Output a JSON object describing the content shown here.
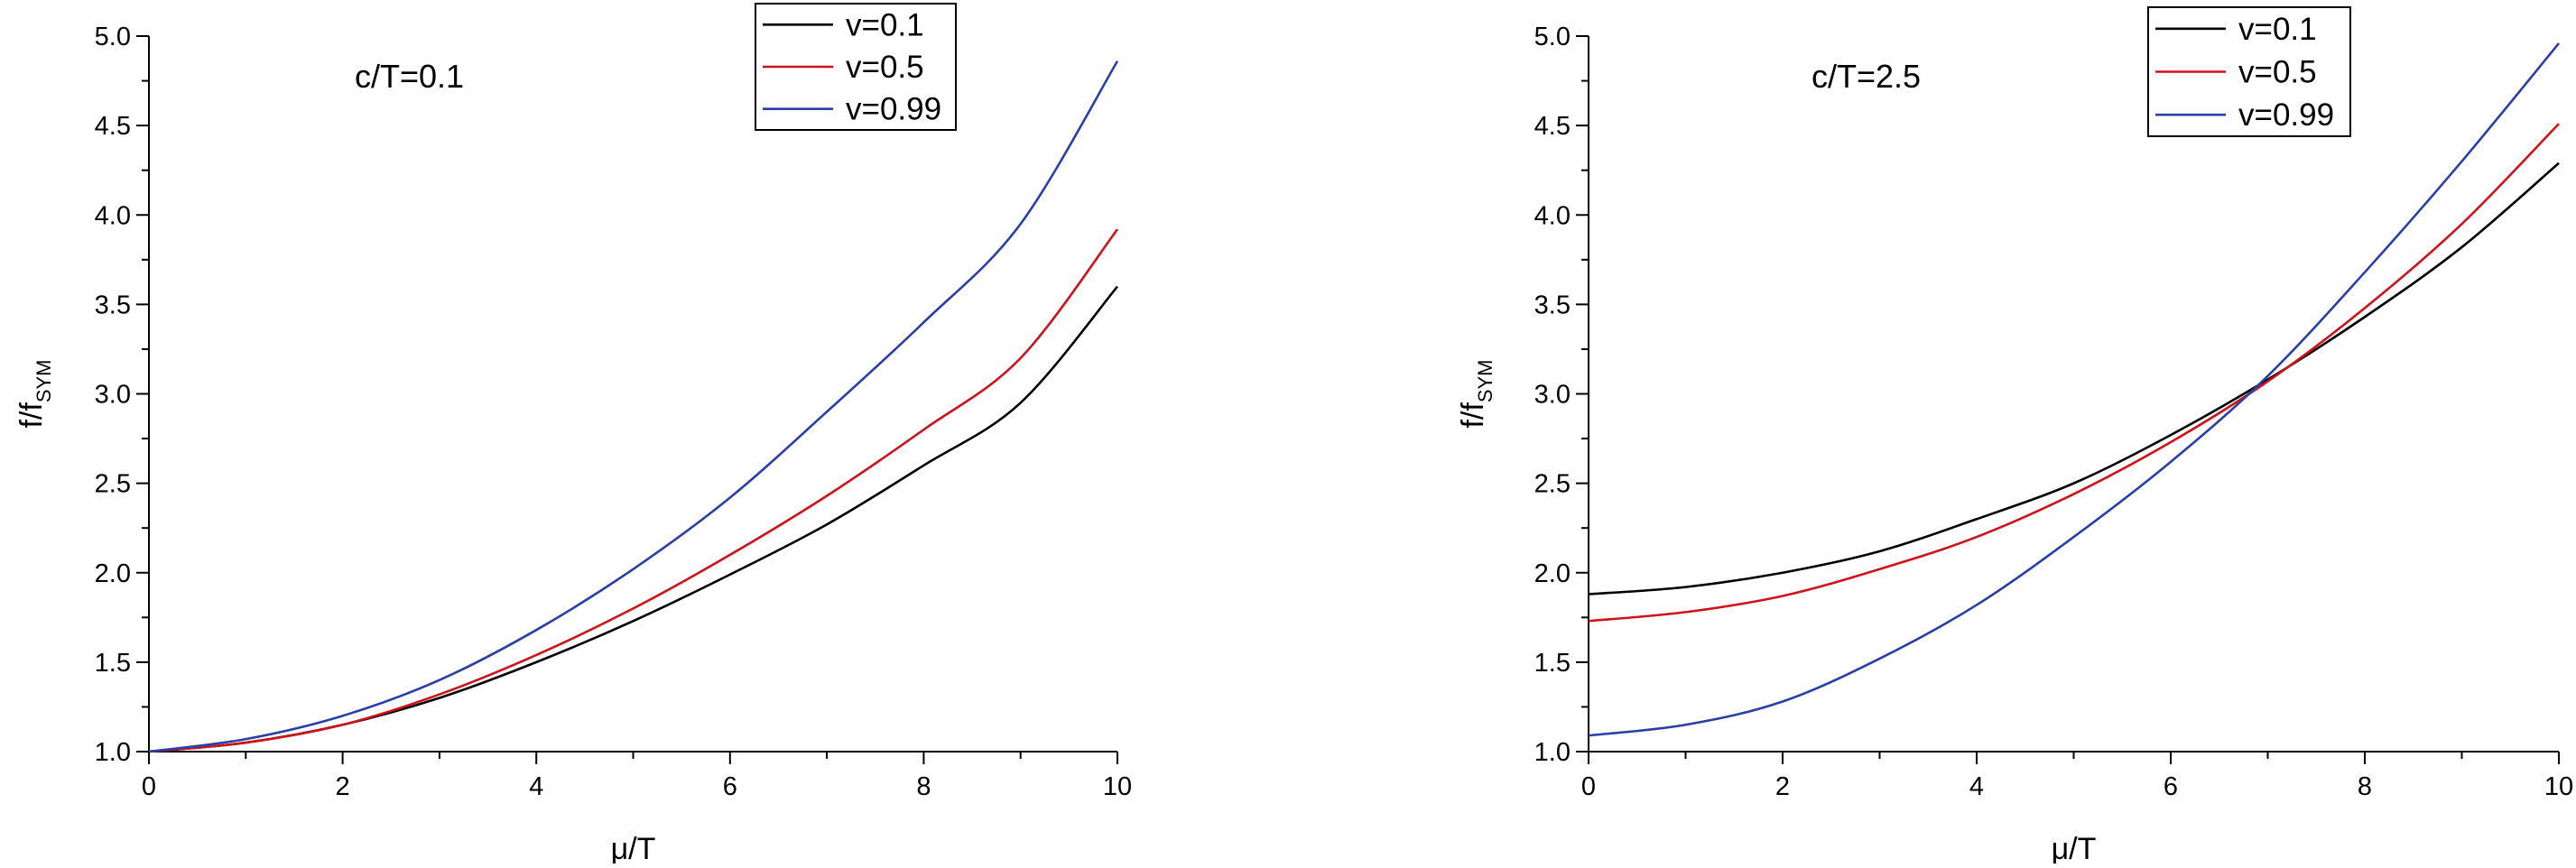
{
  "chart_data": [
    {
      "type": "line",
      "annotation": "c/T=0.1",
      "xlabel": "μ/T",
      "ylabel_main": "f/f",
      "ylabel_sub": "SYM",
      "xlim": [
        0,
        10
      ],
      "ylim": [
        1.0,
        5.0
      ],
      "xticks": [
        "0",
        "2",
        "4",
        "6",
        "8",
        "10"
      ],
      "yticks": [
        "1.0",
        "1.5",
        "2.0",
        "2.5",
        "3.0",
        "3.5",
        "4.0",
        "4.5",
        "5.0"
      ],
      "legend_position": "top-right",
      "series": [
        {
          "name": "v=0.1",
          "color": "#000000",
          "x": [
            0,
            1,
            2,
            3,
            4,
            5,
            6,
            7,
            8,
            9,
            10
          ],
          "y": [
            1.0,
            1.05,
            1.15,
            1.3,
            1.5,
            1.73,
            1.99,
            2.27,
            2.6,
            2.95,
            3.6
          ]
        },
        {
          "name": "v=0.5",
          "color": "#d0121b",
          "x": [
            0,
            1,
            2,
            3,
            4,
            5,
            6,
            7,
            8,
            9,
            10
          ],
          "y": [
            1.0,
            1.05,
            1.15,
            1.32,
            1.54,
            1.8,
            2.1,
            2.43,
            2.8,
            3.2,
            3.92
          ]
        },
        {
          "name": "v=0.99",
          "color": "#2a3ea8",
          "x": [
            0,
            1,
            2,
            3,
            4,
            5,
            6,
            7,
            8,
            9,
            10
          ],
          "y": [
            1.0,
            1.07,
            1.2,
            1.4,
            1.68,
            2.02,
            2.42,
            2.9,
            3.4,
            3.95,
            4.86
          ]
        }
      ]
    },
    {
      "type": "line",
      "annotation": "c/T=2.5",
      "xlabel": "μ/T",
      "ylabel_main": "f/f",
      "ylabel_sub": "SYM",
      "xlim": [
        0,
        10
      ],
      "ylim": [
        1.0,
        5.0
      ],
      "xticks": [
        "0",
        "2",
        "4",
        "6",
        "8",
        "10"
      ],
      "yticks": [
        "1.0",
        "1.5",
        "2.0",
        "2.5",
        "3.0",
        "3.5",
        "4.0",
        "4.5",
        "5.0"
      ],
      "legend_position": "top-right",
      "series": [
        {
          "name": "v=0.1",
          "color": "#000000",
          "x": [
            0,
            1,
            2,
            3,
            4,
            5,
            6,
            7,
            8,
            9,
            10
          ],
          "y": [
            1.88,
            1.92,
            2.0,
            2.12,
            2.3,
            2.5,
            2.77,
            3.08,
            3.43,
            3.82,
            4.29
          ]
        },
        {
          "name": "v=0.5",
          "color": "#d0121b",
          "x": [
            0,
            1,
            2,
            3,
            4,
            5,
            6,
            7,
            8,
            9,
            10
          ],
          "y": [
            1.73,
            1.78,
            1.87,
            2.02,
            2.2,
            2.44,
            2.73,
            3.07,
            3.48,
            3.95,
            4.51
          ]
        },
        {
          "name": "v=0.99",
          "color": "#2a3ea8",
          "x": [
            0,
            1,
            2,
            3,
            4,
            5,
            6,
            7,
            8,
            9,
            10
          ],
          "y": [
            1.09,
            1.15,
            1.28,
            1.52,
            1.82,
            2.2,
            2.62,
            3.1,
            3.68,
            4.3,
            4.96
          ]
        }
      ]
    }
  ]
}
